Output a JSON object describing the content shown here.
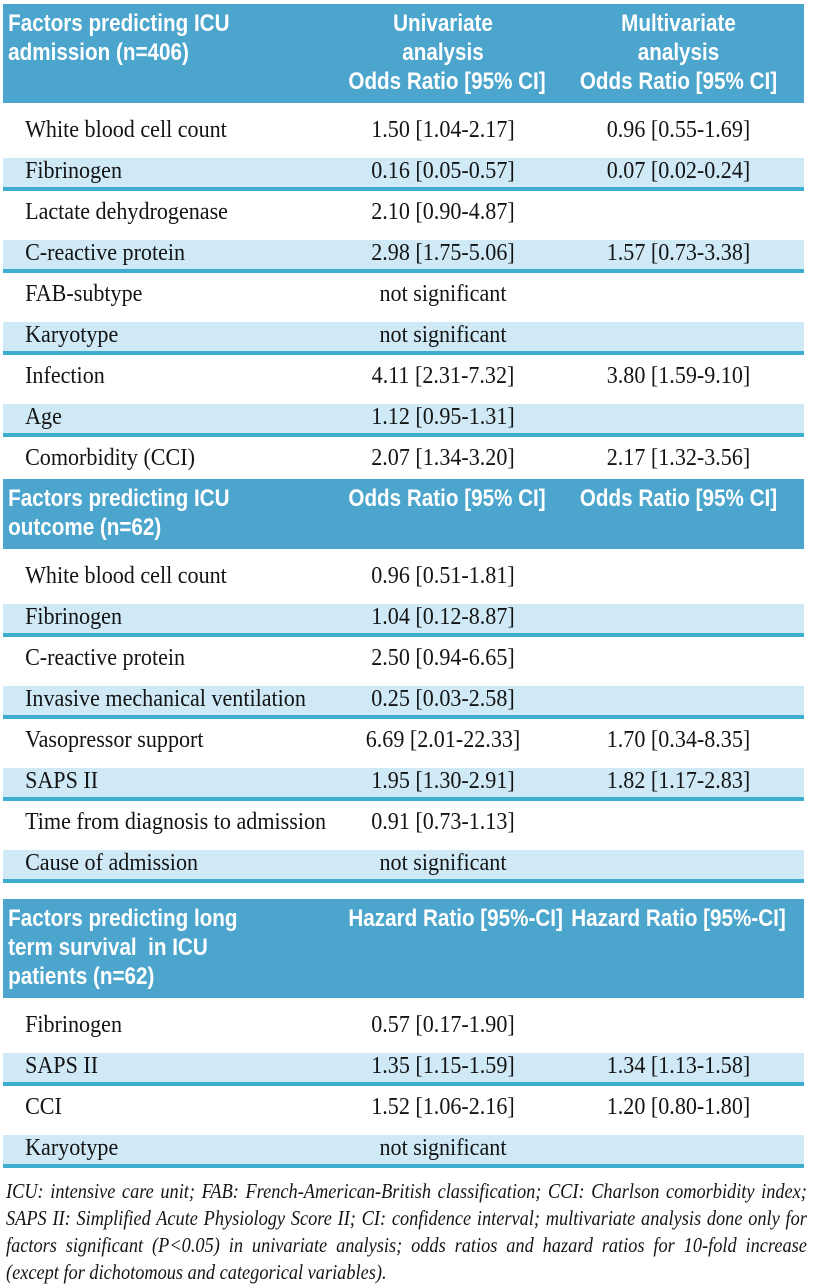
{
  "colors": {
    "header_bg": "#4BA5CC",
    "row_alt_bg": "#CFE9F6",
    "separator_line": "#3EAECE",
    "header_text": "#FFFFFF",
    "body_text": "#141414"
  },
  "sections": [
    {
      "title": "Factors predicting ICU\nadmission (n=406)",
      "columns": [
        "Univariate\nanalysis\nOdds Ratio [95% CI]",
        "Multivariate\nanalysis\nOdds Ratio [95% CI]"
      ],
      "rows": [
        {
          "factor": "White blood cell count",
          "univariate": "1.50 [1.04-2.17]",
          "multivariate": "0.96 [0.55-1.69]"
        },
        {
          "factor": "Fibrinogen",
          "univariate": "0.16 [0.05-0.57]",
          "multivariate": "0.07 [0.02-0.24]"
        },
        {
          "factor": "Lactate dehydrogenase",
          "univariate": "2.10 [0.90-4.87]",
          "multivariate": ""
        },
        {
          "factor": "C-reactive protein",
          "univariate": "2.98 [1.75-5.06]",
          "multivariate": "1.57 [0.73-3.38]"
        },
        {
          "factor": "FAB-subtype",
          "univariate": "not significant",
          "multivariate": ""
        },
        {
          "factor": "Karyotype",
          "univariate": "not significant",
          "multivariate": ""
        },
        {
          "factor": "Infection",
          "univariate": "4.11 [2.31-7.32]",
          "multivariate": "3.80 [1.59-9.10]"
        },
        {
          "factor": "Age",
          "univariate": "1.12 [0.95-1.31]",
          "multivariate": ""
        },
        {
          "factor": "Comorbidity (CCI)",
          "univariate": "2.07 [1.34-3.20]",
          "multivariate": "2.17 [1.32-3.56]"
        }
      ]
    },
    {
      "title": "Factors predicting ICU\noutcome (n=62)",
      "columns": [
        "Odds Ratio [95% CI]",
        "Odds Ratio [95% CI]"
      ],
      "rows": [
        {
          "factor": "White blood cell count",
          "univariate": "0.96 [0.51-1.81]",
          "multivariate": ""
        },
        {
          "factor": "Fibrinogen",
          "univariate": "1.04 [0.12-8.87]",
          "multivariate": ""
        },
        {
          "factor": "C-reactive protein",
          "univariate": "2.50 [0.94-6.65]",
          "multivariate": ""
        },
        {
          "factor": "Invasive mechanical ventilation",
          "univariate": "0.25 [0.03-2.58]",
          "multivariate": ""
        },
        {
          "factor": "Vasopressor support",
          "univariate": "6.69 [2.01-22.33]",
          "multivariate": "1.70 [0.34-8.35]"
        },
        {
          "factor": "SAPS II",
          "univariate": "1.95 [1.30-2.91]",
          "multivariate": "1.82 [1.17-2.83]"
        },
        {
          "factor": "Time from diagnosis to admission",
          "univariate": "0.91 [0.73-1.13]",
          "multivariate": ""
        },
        {
          "factor": "Cause of admission",
          "univariate": "not significant",
          "multivariate": ""
        }
      ]
    },
    {
      "title": "Factors predicting long\nterm survival  in ICU\npatients (n=62)",
      "columns": [
        "Hazard Ratio [95%-CI]",
        "Hazard Ratio [95%-CI]"
      ],
      "rows": [
        {
          "factor": "Fibrinogen",
          "univariate": "0.57 [0.17-1.90]",
          "multivariate": ""
        },
        {
          "factor": "SAPS II",
          "univariate": "1.35 [1.15-1.59]",
          "multivariate": "1.34 [1.13-1.58]"
        },
        {
          "factor": "CCI",
          "univariate": "1.52 [1.06-2.16]",
          "multivariate": "1.20 [0.80-1.80]"
        },
        {
          "factor": "Karyotype",
          "univariate": "not significant",
          "multivariate": ""
        }
      ]
    }
  ],
  "footnote": "ICU: intensive care unit; FAB: French-American-British classification; CCI: Charlson comorbidity index; SAPS II: Simplified Acute Physiology Score II; CI: confidence interval; multivariate analysis done only for factors significant (P<0.05) in univariate analysis; odds ratios and hazard ratios for 10-fold increase (except for dichotomous and categorical variables)."
}
